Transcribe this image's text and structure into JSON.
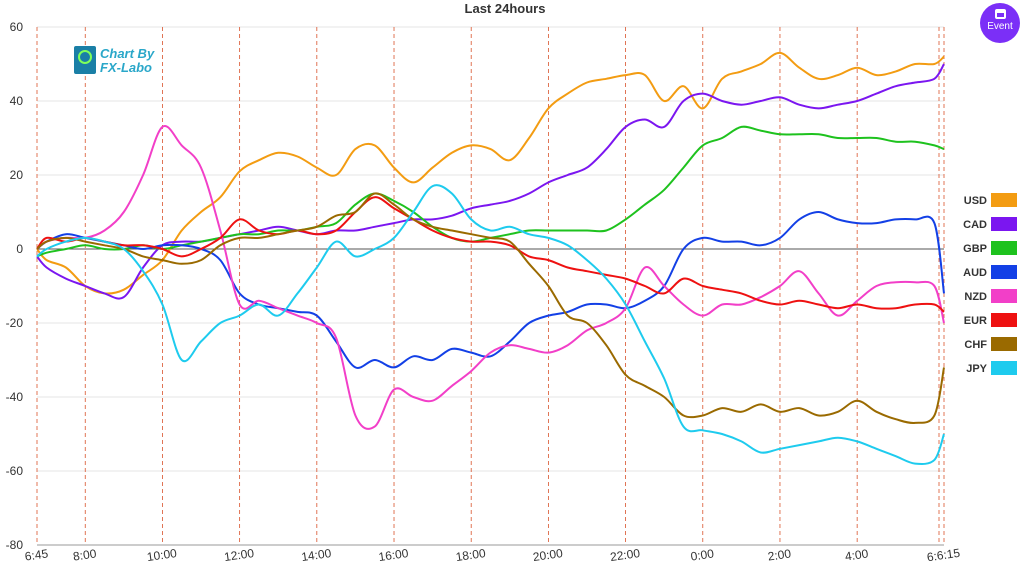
{
  "chart_data": {
    "type": "line",
    "title": "Last 24hours",
    "ylim": [
      -80,
      60
    ],
    "yticks": [
      60,
      40,
      20,
      0,
      -20,
      -40,
      -60,
      -80
    ],
    "xticks": [
      "6:45",
      "8:00",
      "10:00",
      "12:00",
      "14:00",
      "16:00",
      "18:00",
      "20:00",
      "22:00",
      "0:00",
      "2:00",
      "4:00",
      "6:6:15"
    ],
    "x": [
      "6:45",
      "7:00",
      "7:30",
      "8:00",
      "8:30",
      "9:00",
      "9:30",
      "10:00",
      "10:30",
      "11:00",
      "11:30",
      "12:00",
      "12:30",
      "13:00",
      "13:30",
      "14:00",
      "14:30",
      "15:00",
      "15:30",
      "16:00",
      "16:30",
      "17:00",
      "17:30",
      "18:00",
      "18:30",
      "19:00",
      "19:30",
      "20:00",
      "20:30",
      "21:00",
      "21:30",
      "22:00",
      "22:30",
      "23:00",
      "23:30",
      "0:00",
      "0:30",
      "1:00",
      "1:30",
      "2:00",
      "2:30",
      "3:00",
      "3:30",
      "4:00",
      "4:30",
      "5:00",
      "5:30",
      "6:00",
      "6:15"
    ],
    "series": [
      {
        "name": "USD",
        "color": "#f39c12",
        "values": [
          0,
          -3,
          -5,
          -10,
          -12,
          -11,
          -7,
          -3,
          5,
          10,
          14,
          21,
          24,
          26,
          25,
          22,
          20,
          27,
          28,
          22,
          18,
          22,
          26,
          28,
          27,
          24,
          30,
          38,
          42,
          45,
          46,
          47,
          47,
          40,
          44,
          38,
          46,
          48,
          50,
          53,
          49,
          46,
          47,
          49,
          47,
          48,
          50,
          50,
          52
        ]
      },
      {
        "name": "CAD",
        "color": "#7b16f0",
        "values": [
          -2,
          -5,
          -8,
          -10,
          -12,
          -13,
          -5,
          1,
          2,
          2,
          3,
          4,
          5,
          6,
          5,
          4,
          5,
          5,
          6,
          7,
          8,
          8,
          9,
          11,
          12,
          13,
          15,
          18,
          20,
          22,
          27,
          33,
          35,
          33,
          40,
          42,
          40,
          39,
          40,
          41,
          39,
          38,
          39,
          40,
          42,
          44,
          45,
          46,
          50
        ]
      },
      {
        "name": "GBP",
        "color": "#1ec21e",
        "values": [
          -2,
          -1,
          0,
          1,
          0,
          0,
          1,
          0,
          1,
          2,
          3,
          4,
          4,
          5,
          5,
          6,
          7,
          12,
          15,
          13,
          10,
          6,
          3,
          2,
          3,
          4,
          5,
          5,
          5,
          5,
          5,
          8,
          12,
          16,
          22,
          28,
          30,
          33,
          32,
          31,
          31,
          31,
          30,
          30,
          30,
          29,
          29,
          28,
          27
        ]
      },
      {
        "name": "AUD",
        "color": "#1340e6",
        "values": [
          0,
          2,
          4,
          3,
          2,
          1,
          0,
          1,
          1,
          0,
          -3,
          -12,
          -15,
          -16,
          -17,
          -18,
          -25,
          -32,
          -30,
          -32,
          -29,
          -30,
          -27,
          -28,
          -29,
          -25,
          -20,
          -18,
          -17,
          -15,
          -15,
          -16,
          -14,
          -10,
          0,
          3,
          2,
          2,
          1,
          3,
          8,
          10,
          8,
          7,
          7,
          8,
          8,
          7,
          -12
        ]
      },
      {
        "name": "NZD",
        "color": "#f23fc8",
        "values": [
          0,
          2,
          3,
          3,
          5,
          10,
          20,
          33,
          28,
          22,
          5,
          -15,
          -14,
          -16,
          -18,
          -20,
          -24,
          -45,
          -48,
          -38,
          -40,
          -41,
          -37,
          -33,
          -28,
          -26,
          -27,
          -28,
          -26,
          -22,
          -20,
          -16,
          -5,
          -10,
          -15,
          -18,
          -15,
          -15,
          -13,
          -10,
          -6,
          -12,
          -18,
          -14,
          -10,
          -9,
          -9,
          -10,
          -20
        ]
      },
      {
        "name": "EUR",
        "color": "#ee1111",
        "values": [
          0,
          3,
          2,
          3,
          2,
          1,
          1,
          0,
          -2,
          0,
          3,
          8,
          5,
          4,
          5,
          4,
          5,
          10,
          14,
          11,
          8,
          5,
          3,
          2,
          2,
          1,
          -2,
          -3,
          -5,
          -6,
          -7,
          -8,
          -10,
          -12,
          -8,
          -10,
          -11,
          -12,
          -14,
          -15,
          -14,
          -15,
          -16,
          -15,
          -16,
          -16,
          -15,
          -15,
          -17
        ]
      },
      {
        "name": "CHF",
        "color": "#9a6a00",
        "values": [
          0,
          2,
          3,
          2,
          1,
          0,
          -2,
          -3,
          -4,
          -3,
          1,
          3,
          3,
          4,
          5,
          6,
          9,
          10,
          15,
          12,
          8,
          6,
          5,
          4,
          3,
          2,
          -4,
          -10,
          -18,
          -20,
          -26,
          -34,
          -37,
          -40,
          -45,
          -45,
          -43,
          -44,
          -42,
          -44,
          -43,
          -45,
          -44,
          -41,
          -44,
          -46,
          -47,
          -45,
          -32
        ]
      },
      {
        "name": "JPY",
        "color": "#1ecbee",
        "values": [
          -2,
          0,
          2,
          3,
          2,
          0,
          -6,
          -15,
          -30,
          -25,
          -20,
          -18,
          -15,
          -18,
          -12,
          -5,
          2,
          -2,
          0,
          3,
          10,
          17,
          15,
          8,
          5,
          6,
          4,
          3,
          1,
          -3,
          -8,
          -15,
          -25,
          -35,
          -48,
          -49,
          -50,
          -52,
          -55,
          -54,
          -53,
          -52,
          -51,
          -52,
          -54,
          -56,
          -58,
          -57,
          -50
        ]
      }
    ],
    "grid": "vertical dashed at each hour mark",
    "legend_position": "right"
  },
  "logo": {
    "line1": "Chart By",
    "line2": "FX-Labo"
  },
  "event_button": {
    "label": "Event",
    "icon": "calendar-icon"
  }
}
